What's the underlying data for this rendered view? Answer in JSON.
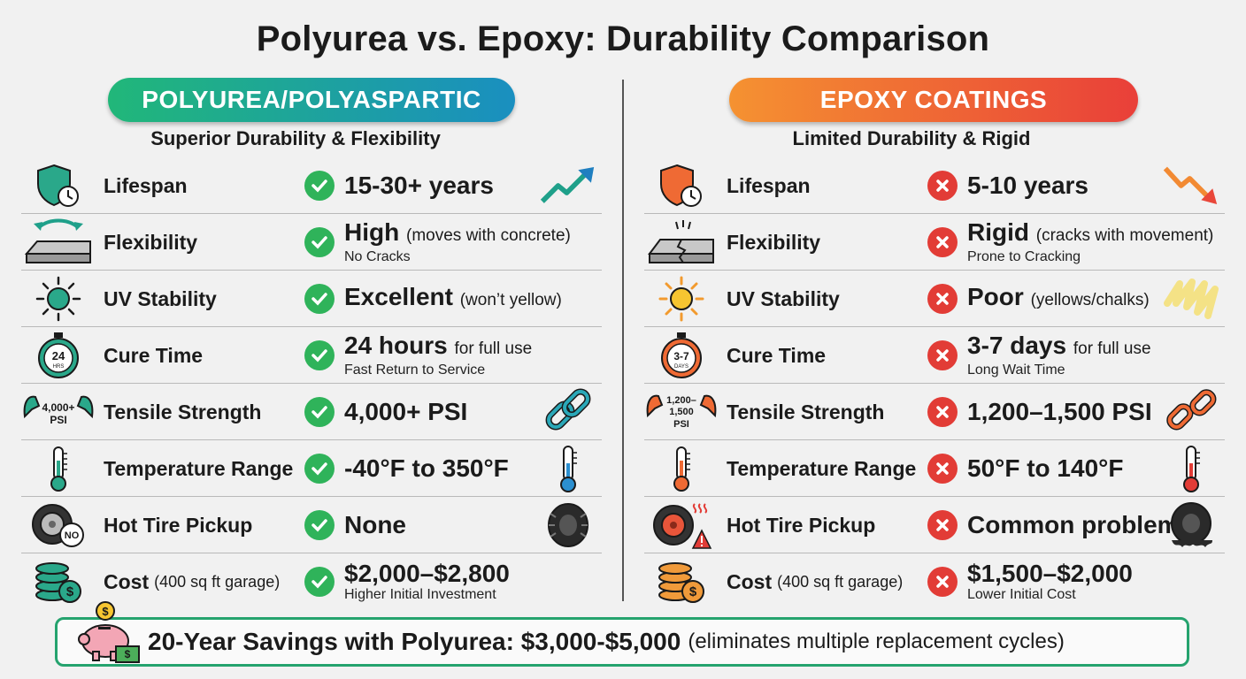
{
  "title": "Polyurea vs. Epoxy: Durability Comparison",
  "left": {
    "header": "POLYUREA/POLYASPARTIC",
    "subtitle": "Superior Durability & Flexibility",
    "rows": [
      {
        "label": "Lifespan",
        "note": "",
        "value": "15-30+ years",
        "extra": "",
        "sub": ""
      },
      {
        "label": "Flexibility",
        "note": "",
        "value": "High",
        "extra": "(moves with concrete)",
        "sub": "No Cracks"
      },
      {
        "label": "UV Stability",
        "note": "",
        "value": "Excellent",
        "extra": "(won’t yellow)",
        "sub": ""
      },
      {
        "label": "Cure Time",
        "note": "",
        "value": "24 hours",
        "extra": "for full use",
        "sub": "Fast Return to Service"
      },
      {
        "label": "Tensile Strength",
        "note": "",
        "value": "4,000+ PSI",
        "extra": "",
        "sub": ""
      },
      {
        "label": "Temperature Range",
        "note": "",
        "value": "-40°F to 350°F",
        "extra": "",
        "sub": ""
      },
      {
        "label": "Hot Tire Pickup",
        "note": "",
        "value": "None",
        "extra": "",
        "sub": ""
      },
      {
        "label": "Cost",
        "note": "(400 sq ft garage)",
        "value": "$2,000–$2,800",
        "extra": "",
        "sub": "Higher Initial Investment"
      }
    ],
    "icon_text": {
      "cure": "24",
      "cure_unit": "HRS",
      "psi_top": "4,000+",
      "psi_bottom": "PSI",
      "no": "NO"
    }
  },
  "right": {
    "header": "EPOXY COATINGS",
    "subtitle": "Limited Durability & Rigid",
    "rows": [
      {
        "label": "Lifespan",
        "note": "",
        "value": "5-10 years",
        "extra": "",
        "sub": ""
      },
      {
        "label": "Flexibility",
        "note": "",
        "value": "Rigid",
        "extra": "(cracks with movement)",
        "sub": "Prone to Cracking"
      },
      {
        "label": "UV Stability",
        "note": "",
        "value": "Poor",
        "extra": "(yellows/chalks)",
        "sub": ""
      },
      {
        "label": "Cure Time",
        "note": "",
        "value": "3-7 days",
        "extra": "for full use",
        "sub": "Long Wait Time"
      },
      {
        "label": "Tensile Strength",
        "note": "",
        "value": "1,200–1,500 PSI",
        "extra": "",
        "sub": ""
      },
      {
        "label": "Temperature Range",
        "note": "",
        "value": "50°F to 140°F",
        "extra": "",
        "sub": ""
      },
      {
        "label": "Hot Tire Pickup",
        "note": "",
        "value": "Common problem",
        "extra": "",
        "sub": ""
      },
      {
        "label": "Cost",
        "note": "(400 sq ft garage)",
        "value": "$1,500–$2,000",
        "extra": "",
        "sub": "Lower Initial Cost"
      }
    ],
    "icon_text": {
      "cure": "3-7",
      "cure_unit": "DAYS",
      "psi_top": "1,200–",
      "psi_mid": "1,500",
      "psi_bottom": "PSI"
    }
  },
  "banner": {
    "main": "20-Year Savings with Polyurea: $3,000-$5,000",
    "extra": "(eliminates multiple replacement cycles)"
  },
  "colors": {
    "polyurea_start": "#21b779",
    "polyurea_end": "#1a8fc0",
    "epoxy_start": "#f59231",
    "epoxy_end": "#e93f39",
    "check": "#2fb35a",
    "cross": "#e23c36"
  }
}
